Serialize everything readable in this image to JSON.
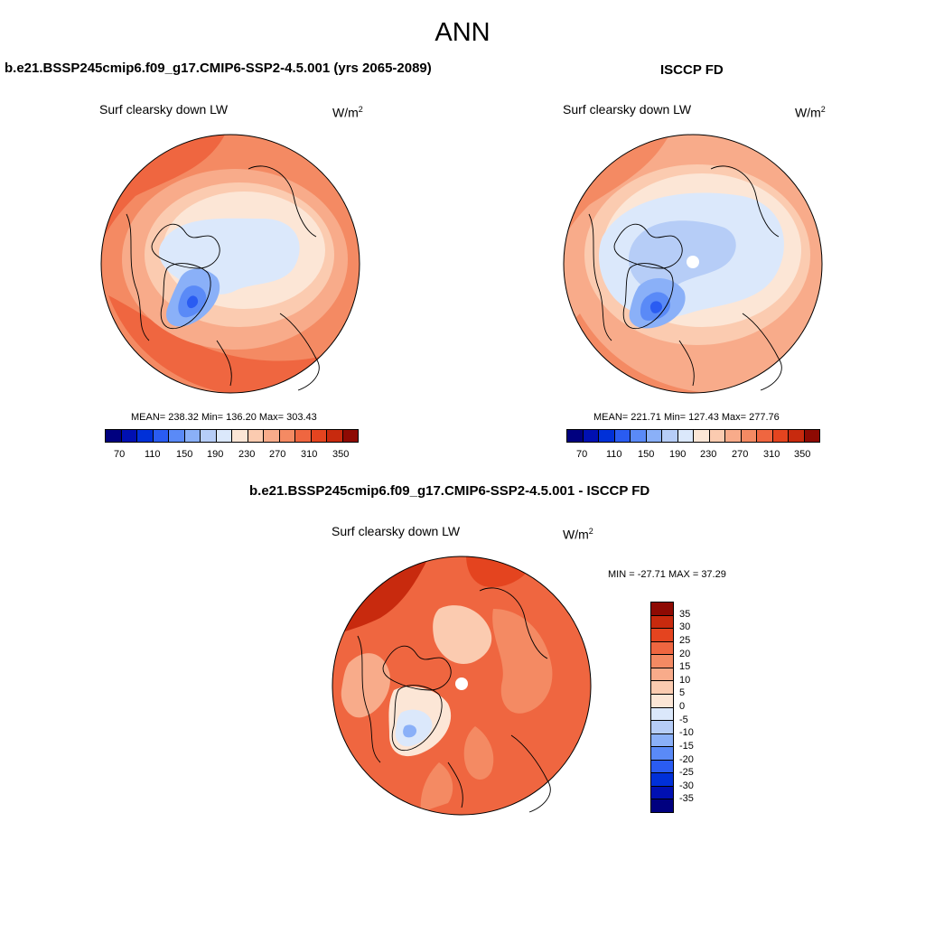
{
  "figure": {
    "season": "ANN"
  },
  "panels": {
    "model": {
      "case_title": "b.e21.BSSP245cmip6.f09_g17.CMIP6-SSP2-4.5.001 (yrs 2065-2089)",
      "variable": "Surf clearsky down LW",
      "units_base": "W/m",
      "units_exp": "2",
      "stats": "MEAN= 238.32  Min= 136.20  Max= 303.43"
    },
    "obs": {
      "case_title": "ISCCP FD",
      "variable": "Surf clearsky down LW",
      "units_base": "W/m",
      "units_exp": "2",
      "stats": "MEAN= 221.71  Min= 127.43  Max= 277.76"
    },
    "diff": {
      "case_title": "b.e21.BSSP245cmip6.f09_g17.CMIP6-SSP2-4.5.001 - ISCCP FD",
      "variable": "Surf clearsky down LW",
      "units_base": "W/m",
      "units_exp": "2",
      "stats": "MIN = -27.71 MAX =  37.29"
    }
  },
  "colorbars": {
    "absolute": {
      "colors": [
        "#00007f",
        "#0010b2",
        "#0030d8",
        "#2a5cf2",
        "#5a8af7",
        "#8ab0f8",
        "#b6cdf7",
        "#dbe8fb",
        "#fce6d6",
        "#fbcbb0",
        "#f8ab8a",
        "#f48a63",
        "#ef6640",
        "#e4441f",
        "#c82a0e",
        "#8e0a03"
      ],
      "tick_labels": [
        "70",
        "110",
        "150",
        "190",
        "230",
        "270",
        "310",
        "350"
      ]
    },
    "difference": {
      "colors": [
        "#8e0a03",
        "#c82a0e",
        "#e4441f",
        "#ef6640",
        "#f48a63",
        "#f8ab8a",
        "#fbcbb0",
        "#fce6d6",
        "#dbe8fb",
        "#b6cdf7",
        "#8ab0f8",
        "#5a8af7",
        "#2a5cf2",
        "#0030d8",
        "#0010b2",
        "#00007f"
      ],
      "tick_labels": [
        "35",
        "30",
        "25",
        "20",
        "15",
        "10",
        "5",
        "0",
        "-5",
        "-10",
        "-15",
        "-20",
        "-25",
        "-30",
        "-35"
      ]
    }
  }
}
